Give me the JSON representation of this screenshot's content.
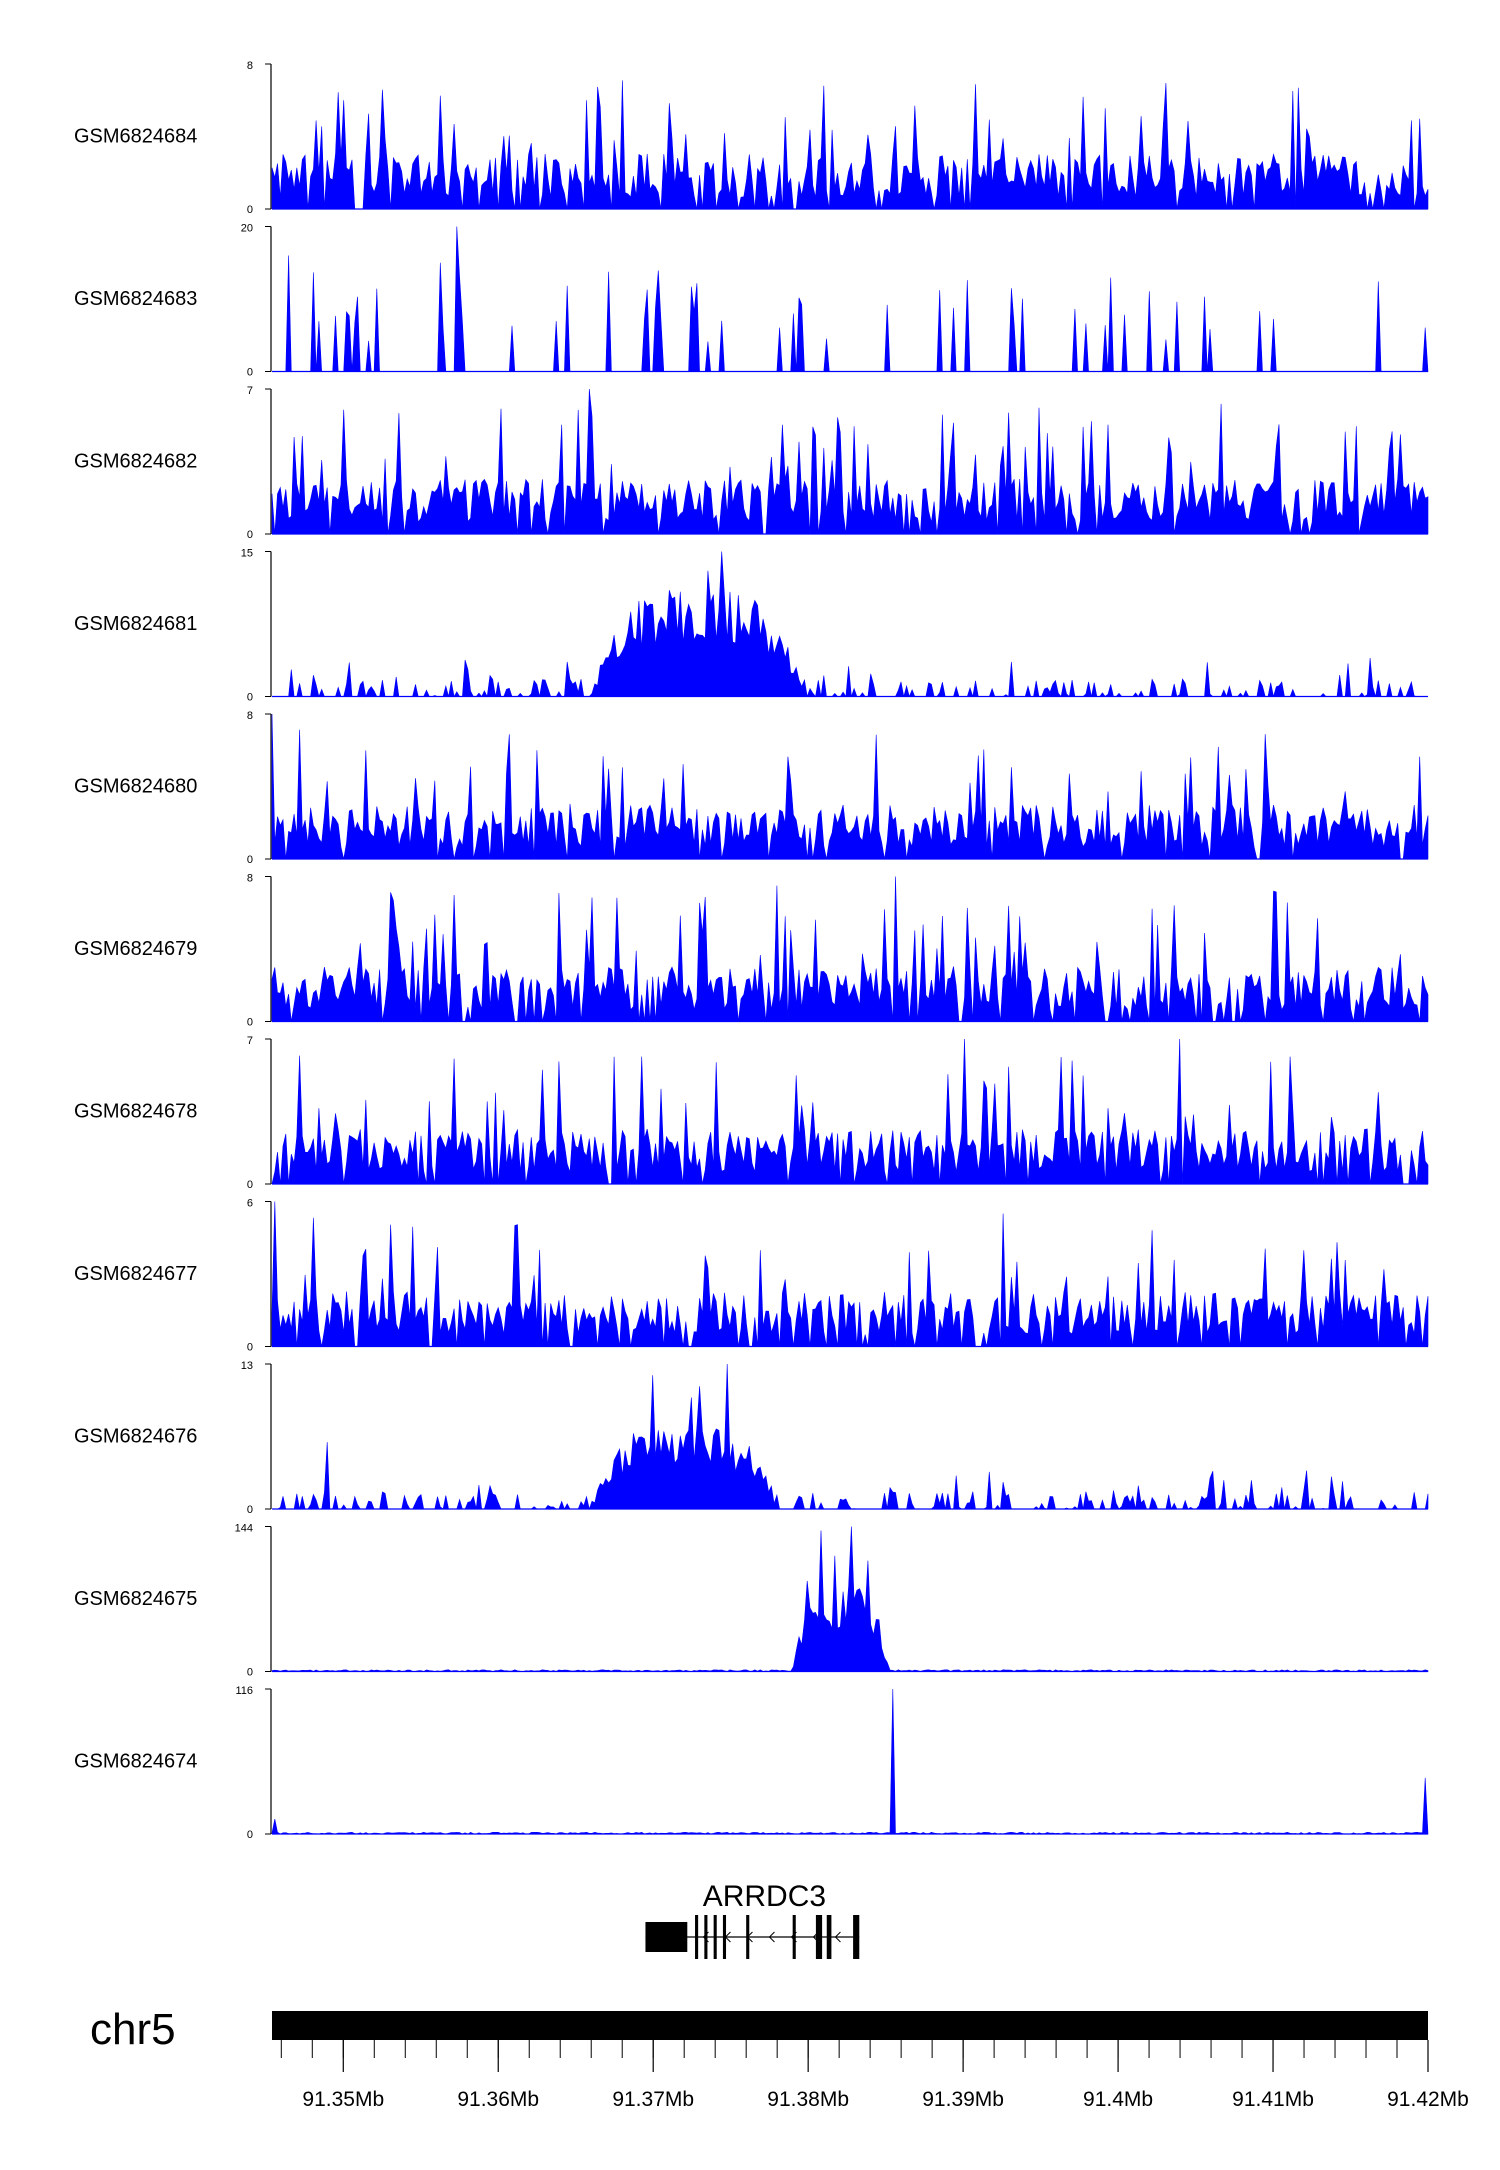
{
  "chart_data": {
    "type": "area",
    "description_note": "",
    "colors": {
      "signal": "#0000ff",
      "axis": "#000000",
      "gene": "#000000"
    },
    "x_range_mb": [
      91.3454,
      91.42
    ],
    "tracks": [
      {
        "name": "GSM6824684",
        "ymax": 8,
        "ymin": 0,
        "profile": "noisy",
        "seed": 1,
        "peaks": []
      },
      {
        "name": "GSM6824683",
        "ymax": 20,
        "ymin": 0,
        "profile": "sparse",
        "seed": 2,
        "peaks": [
          [
            91.3465,
            16
          ],
          [
            91.3562,
            15
          ],
          [
            91.3574,
            20
          ],
          [
            91.3745,
            7
          ],
          [
            91.379,
            8
          ]
        ]
      },
      {
        "name": "GSM6824682",
        "ymax": 7,
        "ymin": 0,
        "profile": "noisy",
        "seed": 3,
        "peaks": [
          [
            91.3658,
            7
          ],
          [
            91.383,
            5.2
          ]
        ]
      },
      {
        "name": "GSM6824681",
        "ymax": 15,
        "ymin": 0,
        "profile": "broad",
        "seed": 4,
        "broad": {
          "start": 91.366,
          "end": 91.3798,
          "height": 9.5
        },
        "peaks": [
          [
            91.3745,
            15
          ],
          [
            91.3735,
            13
          ],
          [
            91.371,
            11
          ],
          [
            91.358,
            2.8
          ],
          [
            91.348,
            2.2
          ]
        ]
      },
      {
        "name": "GSM6824680",
        "ymax": 8,
        "ymin": 0,
        "profile": "noisy",
        "seed": 5,
        "peaks": [
          [
            91.3454,
            8
          ],
          [
            91.3625,
            6
          ]
        ]
      },
      {
        "name": "GSM6824679",
        "ymax": 8,
        "ymin": 0,
        "profile": "noisy",
        "seed": 6,
        "peaks": [
          [
            91.3856,
            8
          ],
          [
            91.378,
            7.5
          ]
        ]
      },
      {
        "name": "GSM6824678",
        "ymax": 7,
        "ymin": 0,
        "profile": "noisy",
        "seed": 7,
        "peaks": [
          [
            91.39,
            7
          ],
          [
            91.404,
            7
          ]
        ]
      },
      {
        "name": "GSM6824677",
        "ymax": 6,
        "ymin": 0,
        "profile": "noisy",
        "seed": 8,
        "peaks": [
          [
            91.3456,
            6
          ],
          [
            91.3925,
            5.5
          ]
        ]
      },
      {
        "name": "GSM6824676",
        "ymax": 13,
        "ymin": 0,
        "profile": "broad",
        "seed": 9,
        "broad": {
          "start": 91.366,
          "end": 91.378,
          "height": 6.5
        },
        "peaks": [
          [
            91.3747,
            13
          ],
          [
            91.37,
            12
          ],
          [
            91.373,
            11
          ],
          [
            91.349,
            6
          ],
          [
            91.3725,
            10
          ]
        ]
      },
      {
        "name": "GSM6824675",
        "ymax": 144,
        "ymin": 0,
        "profile": "flat",
        "seed": 10,
        "broad": {
          "start": 91.379,
          "end": 91.3852,
          "height": 75
        },
        "peaks": [
          [
            91.3828,
            144
          ],
          [
            91.3808,
            140
          ],
          [
            91.3818,
            115
          ],
          [
            91.3838,
            110
          ],
          [
            91.38,
            90
          ]
        ]
      },
      {
        "name": "GSM6824674",
        "ymax": 116,
        "ymin": 0,
        "profile": "flat",
        "seed": 11,
        "peaks": [
          [
            91.3854,
            116
          ],
          [
            91.4198,
            45
          ],
          [
            91.3455,
            12
          ]
        ]
      }
    ],
    "gene": {
      "name": "ARRDC3",
      "strand": "-",
      "start": 91.3695,
      "end": 91.3833,
      "exons": [
        [
          91.3695,
          91.3722
        ],
        [
          91.3727,
          91.3729
        ],
        [
          91.3733,
          91.3735
        ],
        [
          91.3739,
          91.3741
        ],
        [
          91.3745,
          91.3747
        ],
        [
          91.376,
          91.3762
        ],
        [
          91.379,
          91.3792
        ],
        [
          91.3805,
          91.3809
        ],
        [
          91.3812,
          91.3815
        ],
        [
          91.3829,
          91.3833
        ]
      ]
    },
    "axis": {
      "chromosome": "chr5",
      "ticks": [
        {
          "value": 91.35,
          "label": "91.35Mb"
        },
        {
          "value": 91.36,
          "label": "91.36Mb"
        },
        {
          "value": 91.37,
          "label": "91.37Mb"
        },
        {
          "value": 91.38,
          "label": "91.38Mb"
        },
        {
          "value": 91.39,
          "label": "91.39Mb"
        },
        {
          "value": 91.4,
          "label": "91.4Mb"
        },
        {
          "value": 91.41,
          "label": "91.41Mb"
        },
        {
          "value": 91.42,
          "label": "91.42Mb"
        }
      ],
      "minor_step": 0.002
    }
  }
}
